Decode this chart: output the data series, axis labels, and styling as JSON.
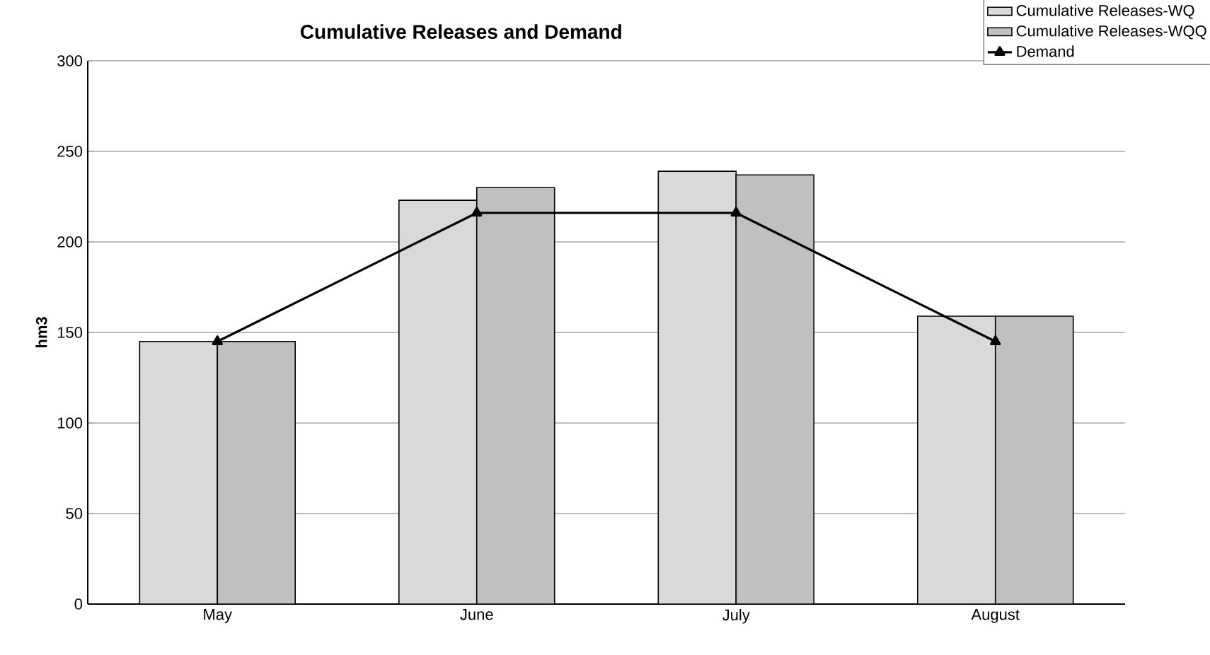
{
  "chart_data": {
    "type": "bar",
    "title": "Cumulative Releases and Demand",
    "ylabel": "hm3",
    "categories": [
      "May",
      "June",
      "July",
      "August"
    ],
    "series": [
      {
        "name": "Cumulative Releases-WQ",
        "color": "#d9d9d9",
        "values": [
          145,
          223,
          239,
          159
        ]
      },
      {
        "name": "Cumulative Releases-WQQ",
        "color": "#c0c0c0",
        "values": [
          145,
          230,
          237,
          159
        ]
      },
      {
        "name": "Demand",
        "type": "line",
        "color": "#000000",
        "values": [
          145,
          216,
          216,
          145
        ]
      }
    ],
    "ylim": [
      0,
      300
    ],
    "yticks": [
      0,
      50,
      100,
      150,
      200,
      250,
      300
    ],
    "grid": "y",
    "legend": "top right",
    "marker": "triangle"
  }
}
